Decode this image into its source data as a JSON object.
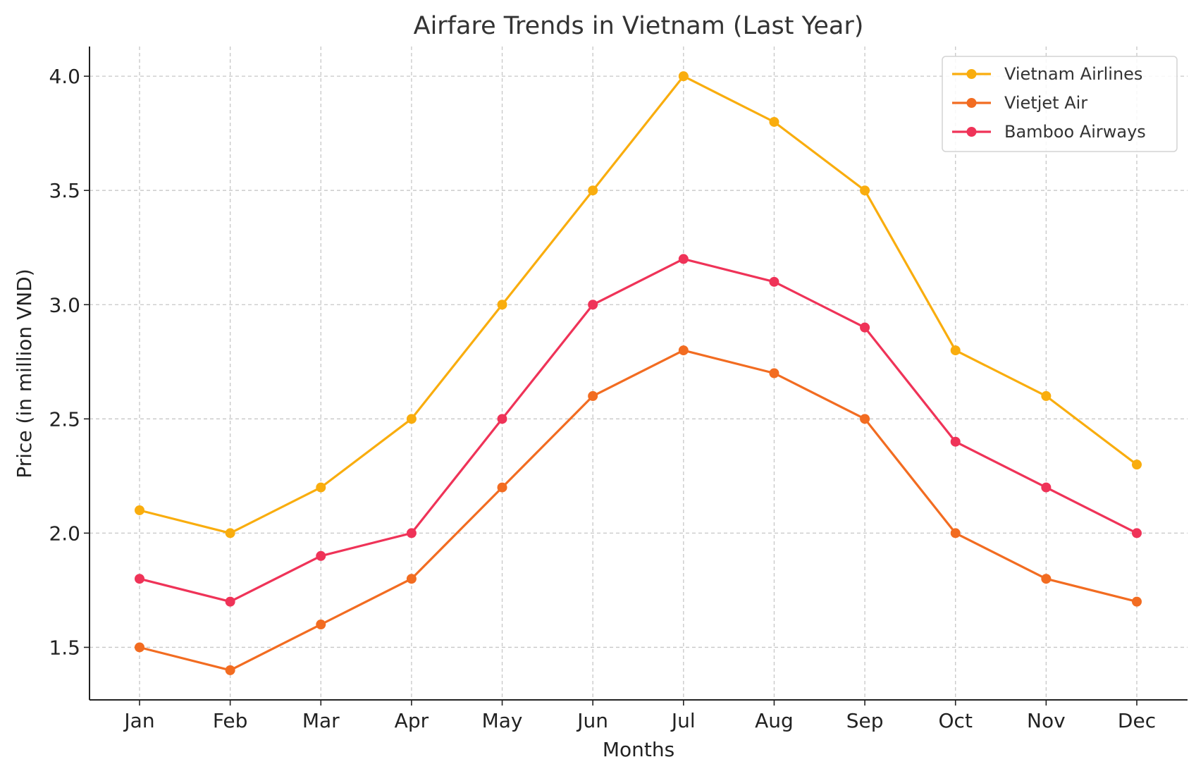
{
  "chart_data": {
    "type": "line",
    "title": "Airfare Trends in Vietnam (Last Year)",
    "xlabel": "Months",
    "ylabel": "Price (in million VND)",
    "categories": [
      "Jan",
      "Feb",
      "Mar",
      "Apr",
      "May",
      "Jun",
      "Jul",
      "Aug",
      "Sep",
      "Oct",
      "Nov",
      "Dec"
    ],
    "ylim": [
      1.27,
      4.13
    ],
    "yticks": [
      1.5,
      2.0,
      2.5,
      3.0,
      3.5,
      4.0
    ],
    "ytick_labels": [
      "1.5",
      "2.0",
      "2.5",
      "3.0",
      "3.5",
      "4.0"
    ],
    "grid": true,
    "legend_position": "top-right",
    "series": [
      {
        "name": "Vietnam Airlines",
        "color": "#f9ad0e",
        "values": [
          2.1,
          2.0,
          2.2,
          2.5,
          3.0,
          3.5,
          4.0,
          3.8,
          3.5,
          2.8,
          2.6,
          2.3
        ]
      },
      {
        "name": "Vietjet Air",
        "color": "#f26c21",
        "values": [
          1.5,
          1.4,
          1.6,
          1.8,
          2.2,
          2.6,
          2.8,
          2.7,
          2.5,
          2.0,
          1.8,
          1.7
        ]
      },
      {
        "name": "Bamboo Airways",
        "color": "#ef3358",
        "values": [
          1.8,
          1.7,
          1.9,
          2.0,
          2.5,
          3.0,
          3.2,
          3.1,
          2.9,
          2.4,
          2.2,
          2.0
        ]
      }
    ]
  }
}
